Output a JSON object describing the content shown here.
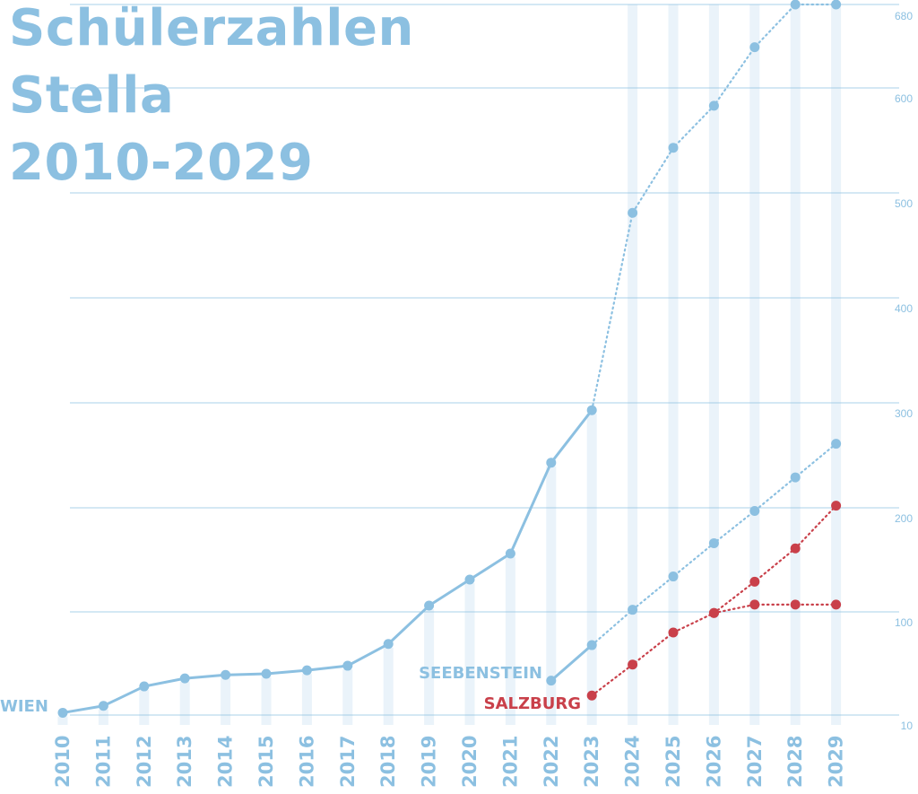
{
  "chart_data": {
    "type": "line",
    "title_lines": [
      "Schülerzahlen",
      "Stella",
      "2010-2029"
    ],
    "x": [
      "2010",
      "2011",
      "2012",
      "2013",
      "2014",
      "2015",
      "2016",
      "2017",
      "2018",
      "2019",
      "2020",
      "2021",
      "2022",
      "2023",
      "2024",
      "2025",
      "2026",
      "2027",
      "2028",
      "2029"
    ],
    "y_ticks": [
      10,
      100,
      200,
      300,
      400,
      500,
      600,
      680
    ],
    "ylim": [
      10,
      680
    ],
    "grid": true,
    "y_axis_side": "right",
    "colors": {
      "blue": "#8cc0e1",
      "red": "#c9404a",
      "column": "#eaf3fa",
      "grid": "#8cc0e1"
    },
    "series": [
      {
        "name": "WIEN",
        "color": "#8cc0e1",
        "actual": [
          [
            2010,
            12
          ],
          [
            2011,
            18
          ],
          [
            2012,
            35
          ],
          [
            2013,
            42
          ],
          [
            2014,
            45
          ],
          [
            2015,
            46
          ],
          [
            2016,
            49
          ],
          [
            2017,
            53
          ],
          [
            2018,
            72
          ],
          [
            2019,
            106
          ],
          [
            2020,
            131
          ],
          [
            2021,
            156
          ],
          [
            2022,
            243
          ],
          [
            2023,
            293
          ]
        ],
        "forecast": [
          [
            2023,
            293
          ],
          [
            2024,
            481
          ],
          [
            2025,
            543
          ],
          [
            2026,
            583
          ],
          [
            2027,
            639
          ],
          [
            2028,
            680
          ],
          [
            2029,
            680
          ]
        ]
      },
      {
        "name": "SEEBENSTEIN",
        "color": "#8cc0e1",
        "actual": [
          [
            2022,
            40
          ],
          [
            2023,
            71
          ]
        ],
        "forecast": [
          [
            2023,
            71
          ],
          [
            2024,
            102
          ],
          [
            2025,
            134
          ],
          [
            2026,
            166
          ],
          [
            2027,
            197
          ],
          [
            2028,
            229
          ],
          [
            2029,
            261
          ]
        ]
      },
      {
        "name": "SALZBURG",
        "color": "#c9404a",
        "actual": [],
        "forecast": [
          [
            2023,
            27
          ],
          [
            2024,
            54
          ],
          [
            2025,
            82
          ],
          [
            2026,
            99
          ],
          [
            2027,
            129
          ],
          [
            2028,
            161
          ],
          [
            2029,
            202
          ]
        ]
      },
      {
        "name": "",
        "color": "#c9404a",
        "actual": [],
        "forecast": [
          [
            2026,
            99
          ],
          [
            2027,
            107
          ],
          [
            2028,
            107
          ],
          [
            2029,
            107
          ]
        ]
      }
    ]
  }
}
